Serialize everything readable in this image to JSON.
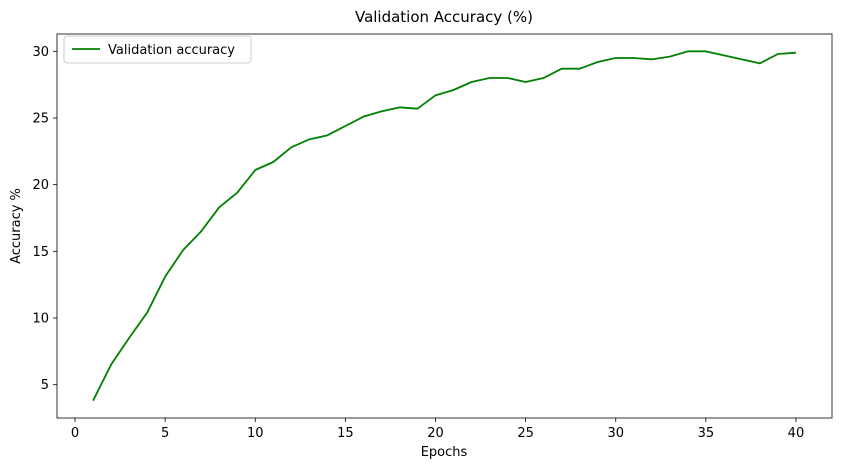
{
  "chart_data": {
    "type": "line",
    "title": "Validation Accuracy (%)",
    "xlabel": "Epochs",
    "ylabel": "Accuracy %",
    "xlim": [
      -1,
      42
    ],
    "ylim": [
      2.5,
      31.3
    ],
    "xticks": [
      0,
      5,
      10,
      15,
      20,
      25,
      30,
      35,
      40
    ],
    "yticks": [
      5,
      10,
      15,
      20,
      25,
      30
    ],
    "grid": false,
    "legend_position": "upper-left",
    "series": [
      {
        "name": "Validation accuracy",
        "color": "#008000",
        "x": [
          1,
          2,
          3,
          4,
          5,
          6,
          7,
          8,
          9,
          10,
          11,
          12,
          13,
          14,
          15,
          16,
          17,
          18,
          19,
          20,
          21,
          22,
          23,
          24,
          25,
          26,
          27,
          28,
          29,
          30,
          31,
          32,
          33,
          34,
          35,
          36,
          37,
          38,
          39,
          40
        ],
        "y": [
          3.8,
          6.5,
          8.5,
          10.4,
          13.1,
          15.1,
          16.5,
          18.3,
          19.4,
          21.1,
          21.7,
          22.8,
          23.4,
          23.7,
          24.4,
          25.1,
          25.5,
          25.8,
          25.7,
          26.7,
          27.1,
          27.7,
          28.0,
          28.0,
          27.7,
          28.0,
          28.7,
          28.7,
          29.2,
          29.5,
          29.5,
          29.4,
          29.6,
          30.0,
          30.0,
          29.7,
          29.4,
          29.1,
          29.8,
          29.9
        ]
      }
    ]
  }
}
